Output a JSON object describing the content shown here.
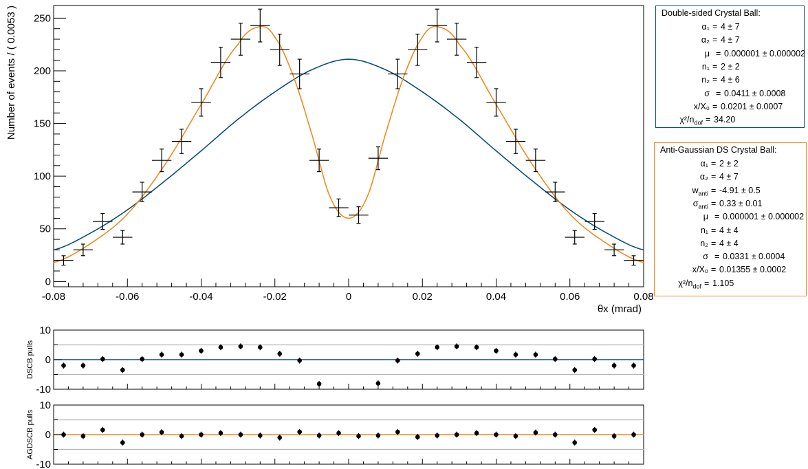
{
  "chart_data": [
    {
      "type": "scatter",
      "title": "",
      "xlabel": "θx (mrad)",
      "ylabel": "Number of events / ( 0.0053 )",
      "xlim": [
        -0.08,
        0.08
      ],
      "ylim": [
        -5,
        262
      ],
      "x_ticks": [
        "-0.08",
        "-0.06",
        "-0.04",
        "-0.02",
        "0",
        "0.02",
        "0.04",
        "0.06",
        "0.08"
      ],
      "y_ticks": [
        "0",
        "50",
        "100",
        "150",
        "200",
        "250"
      ],
      "bin_width": 0.0053,
      "series": [
        {
          "style": "data points with error bars",
          "color": "#000000",
          "x": [
            -0.0773,
            -0.072,
            -0.0667,
            -0.0613,
            -0.056,
            -0.0507,
            -0.0453,
            -0.04,
            -0.0347,
            -0.0293,
            -0.024,
            -0.0187,
            -0.0133,
            -0.008,
            -0.0027,
            0.0027,
            0.008,
            0.0133,
            0.0187,
            0.024,
            0.0293,
            0.0347,
            0.04,
            0.0453,
            0.0507,
            0.056,
            0.0613,
            0.0667,
            0.072,
            0.0773
          ],
          "y": [
            20,
            30,
            57,
            42,
            85,
            115,
            133,
            170,
            208,
            230,
            243,
            220,
            197,
            115,
            70,
            63,
            117,
            197,
            220,
            243,
            230,
            208,
            170,
            133,
            115,
            85,
            42,
            57,
            30,
            20
          ]
        },
        {
          "style": "curve",
          "color": "#0b4f7c",
          "model": "Double-sided Crystal Ball",
          "x": [
            -0.08,
            -0.07,
            -0.06,
            -0.05,
            -0.04,
            -0.03,
            -0.02,
            -0.01,
            0,
            0.01,
            0.02,
            0.03,
            0.04,
            0.05,
            0.06,
            0.07,
            0.08
          ],
          "y": [
            30,
            46,
            68,
            95,
            124,
            154,
            180,
            201,
            211,
            201,
            180,
            154,
            124,
            95,
            68,
            46,
            30
          ]
        },
        {
          "style": "curve",
          "color": "#f08c1c",
          "model": "Anti-Gaussian DS Crystal Ball",
          "x": [
            -0.08,
            -0.07,
            -0.06,
            -0.05,
            -0.04,
            -0.03,
            -0.024,
            -0.02,
            -0.015,
            -0.01,
            -0.005,
            0,
            0.005,
            0.01,
            0.015,
            0.02,
            0.024,
            0.03,
            0.04,
            0.05,
            0.06,
            0.07,
            0.08
          ],
          "y": [
            18,
            36,
            64,
            110,
            168,
            225,
            242,
            232,
            195,
            140,
            80,
            60,
            80,
            140,
            195,
            232,
            242,
            225,
            168,
            110,
            64,
            36,
            18
          ]
        }
      ],
      "legends": [
        {
          "color": "#0b4f7c",
          "title": "Double-sided Crystal Ball:",
          "rows": [
            {
              "label": "α₁",
              "value": "4 ± 7"
            },
            {
              "label": "α₂",
              "value": "4 ± 7"
            },
            {
              "label": "μ",
              "value": "0.000001 ± 0.000002"
            },
            {
              "label": "n₁",
              "value": "2 ± 2"
            },
            {
              "label": "n₂",
              "value": "4 ± 6"
            },
            {
              "label": "σ",
              "value": "0.0411 ± 0.0008"
            },
            {
              "label": "x/X₀",
              "value": "0.0201 ± 0.0007"
            },
            {
              "label": "χ²/n_dof",
              "value": "34.20"
            }
          ]
        },
        {
          "color": "#f08c1c",
          "title": "Anti-Gaussian DS Crystal Ball:",
          "rows": [
            {
              "label": "α₁",
              "value": "2 ± 2"
            },
            {
              "label": "α₂",
              "value": "4 ± 7"
            },
            {
              "label": "w_anti",
              "value": "-4.91 ± 0.5"
            },
            {
              "label": "σ_anti",
              "value": "0.33 ± 0.01"
            },
            {
              "label": "μ",
              "value": "0.000001 ± 0.000002"
            },
            {
              "label": "n₁",
              "value": "4 ± 4"
            },
            {
              "label": "n₂",
              "value": "4 ± 4"
            },
            {
              "label": "σ",
              "value": "0.0331 ± 0.0004"
            },
            {
              "label": "x/X₀",
              "value": "0.01355 ± 0.0002"
            },
            {
              "label": "χ²/n_dof",
              "value": "1.105"
            }
          ]
        }
      ]
    },
    {
      "type": "scatter",
      "ylabel": "DSCB pulls",
      "ylim": [
        -10,
        10
      ],
      "y_ticks": [
        "-10",
        "0",
        "10"
      ],
      "gridlines_y": [
        -5,
        5
      ],
      "zero_line_color": "#0b4f7c",
      "x": [
        -0.0773,
        -0.072,
        -0.0667,
        -0.0613,
        -0.056,
        -0.0507,
        -0.0453,
        -0.04,
        -0.0347,
        -0.0293,
        -0.024,
        -0.0187,
        -0.0133,
        -0.008,
        -0.0027,
        0.0027,
        0.008,
        0.0133,
        0.0187,
        0.024,
        0.0293,
        0.0347,
        0.04,
        0.0453,
        0.0507,
        0.056,
        0.0613,
        0.0667,
        0.072,
        0.0773
      ],
      "y": [
        -2,
        -2,
        0.2,
        -3.5,
        0.2,
        1.7,
        1.7,
        3,
        4.2,
        4.5,
        4.2,
        2,
        -0.3,
        -8.2,
        null,
        null,
        -8,
        -0.3,
        2,
        4.2,
        4.5,
        4.2,
        3,
        1.7,
        1.7,
        0.2,
        -3.5,
        0.2,
        -2,
        -2
      ]
    },
    {
      "type": "scatter",
      "ylabel": "AGDSCB pulls",
      "ylim": [
        -10,
        10
      ],
      "y_ticks": [
        "-10",
        "0",
        "10"
      ],
      "gridlines_y": [
        -5,
        5
      ],
      "zero_line_color": "#f08c1c",
      "x": [
        -0.0773,
        -0.072,
        -0.0667,
        -0.0613,
        -0.056,
        -0.0507,
        -0.0453,
        -0.04,
        -0.0347,
        -0.0293,
        -0.024,
        -0.0187,
        -0.0133,
        -0.008,
        -0.0027,
        0.0027,
        0.008,
        0.0133,
        0.0187,
        0.024,
        0.0293,
        0.0347,
        0.04,
        0.0453,
        0.0507,
        0.056,
        0.0613,
        0.0667,
        0.072,
        0.0773
      ],
      "y": [
        0,
        -0.5,
        1.6,
        -2.7,
        0,
        0.8,
        -0.5,
        0,
        0.5,
        0,
        -0.3,
        -1,
        0.9,
        -0.3,
        0.5,
        -0.5,
        -0.3,
        0.9,
        -0.8,
        -0.3,
        0,
        0.5,
        0,
        -0.5,
        0.7,
        0,
        -2.7,
        1.6,
        -0.5,
        0
      ]
    }
  ]
}
